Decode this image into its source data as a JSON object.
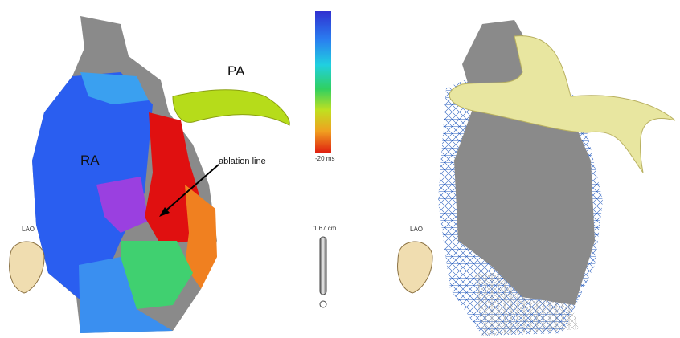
{
  "left_panel": {
    "labels": {
      "pa": "PA",
      "ra": "RA",
      "ablation": "ablation line"
    },
    "color_bar_label": "-20 ms",
    "scale_label": "1.67 cm",
    "orientation": "LAO"
  },
  "right_panel": {
    "orientation": "LAO"
  }
}
